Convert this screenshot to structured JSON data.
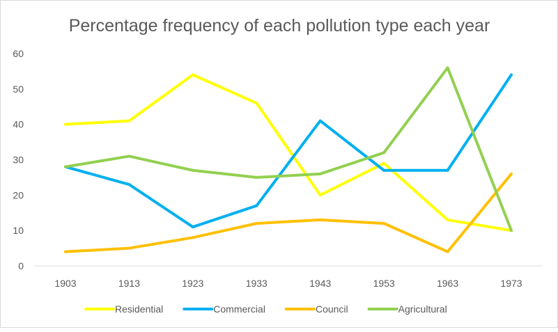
{
  "chart_data": {
    "type": "line",
    "title": "Percentage frequency of each pollution type each year",
    "xlabel": "",
    "ylabel": "",
    "categories": [
      "1903",
      "1913",
      "1923",
      "1933",
      "1943",
      "1953",
      "1963",
      "1973"
    ],
    "ylim": [
      0,
      60
    ],
    "yticks": [
      "0",
      "10",
      "20",
      "30",
      "40",
      "50",
      "60"
    ],
    "grid": false,
    "legend": "bottom",
    "series": [
      {
        "name": "Residential",
        "color": "#FFFF00",
        "values": [
          40,
          41,
          54,
          46,
          20,
          29,
          13,
          10
        ]
      },
      {
        "name": "Commercial",
        "color": "#00B0F0",
        "values": [
          28,
          23,
          11,
          17,
          41,
          27,
          27,
          54
        ]
      },
      {
        "name": "Council",
        "color": "#FFC000",
        "values": [
          4,
          5,
          8,
          12,
          13,
          12,
          4,
          26
        ]
      },
      {
        "name": "Agricultural",
        "color": "#92D050",
        "values": [
          28,
          31,
          27,
          25,
          26,
          32,
          56,
          10
        ]
      }
    ]
  }
}
